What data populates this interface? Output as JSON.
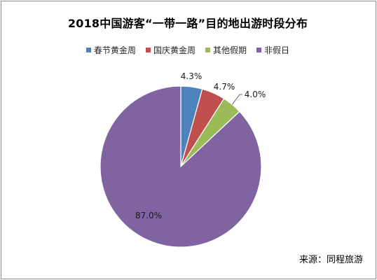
{
  "chart_data": {
    "type": "pie",
    "title": "2018中国游客“一带一路”目的地出游时段分布",
    "categories": [
      "春节黄金周",
      "国庆黄金周",
      "其他假期",
      "非假日"
    ],
    "values": [
      4.3,
      4.7,
      4.0,
      87.0
    ],
    "value_labels": [
      "4.3%",
      "4.7%",
      "4.0%",
      "87.0%"
    ],
    "colors": [
      "#4f81bd",
      "#c0504d",
      "#9bbb59",
      "#8064a2"
    ],
    "legend_position": "top",
    "start_angle": "12 o'clock, clockwise"
  },
  "source": "来源：同程旅游"
}
